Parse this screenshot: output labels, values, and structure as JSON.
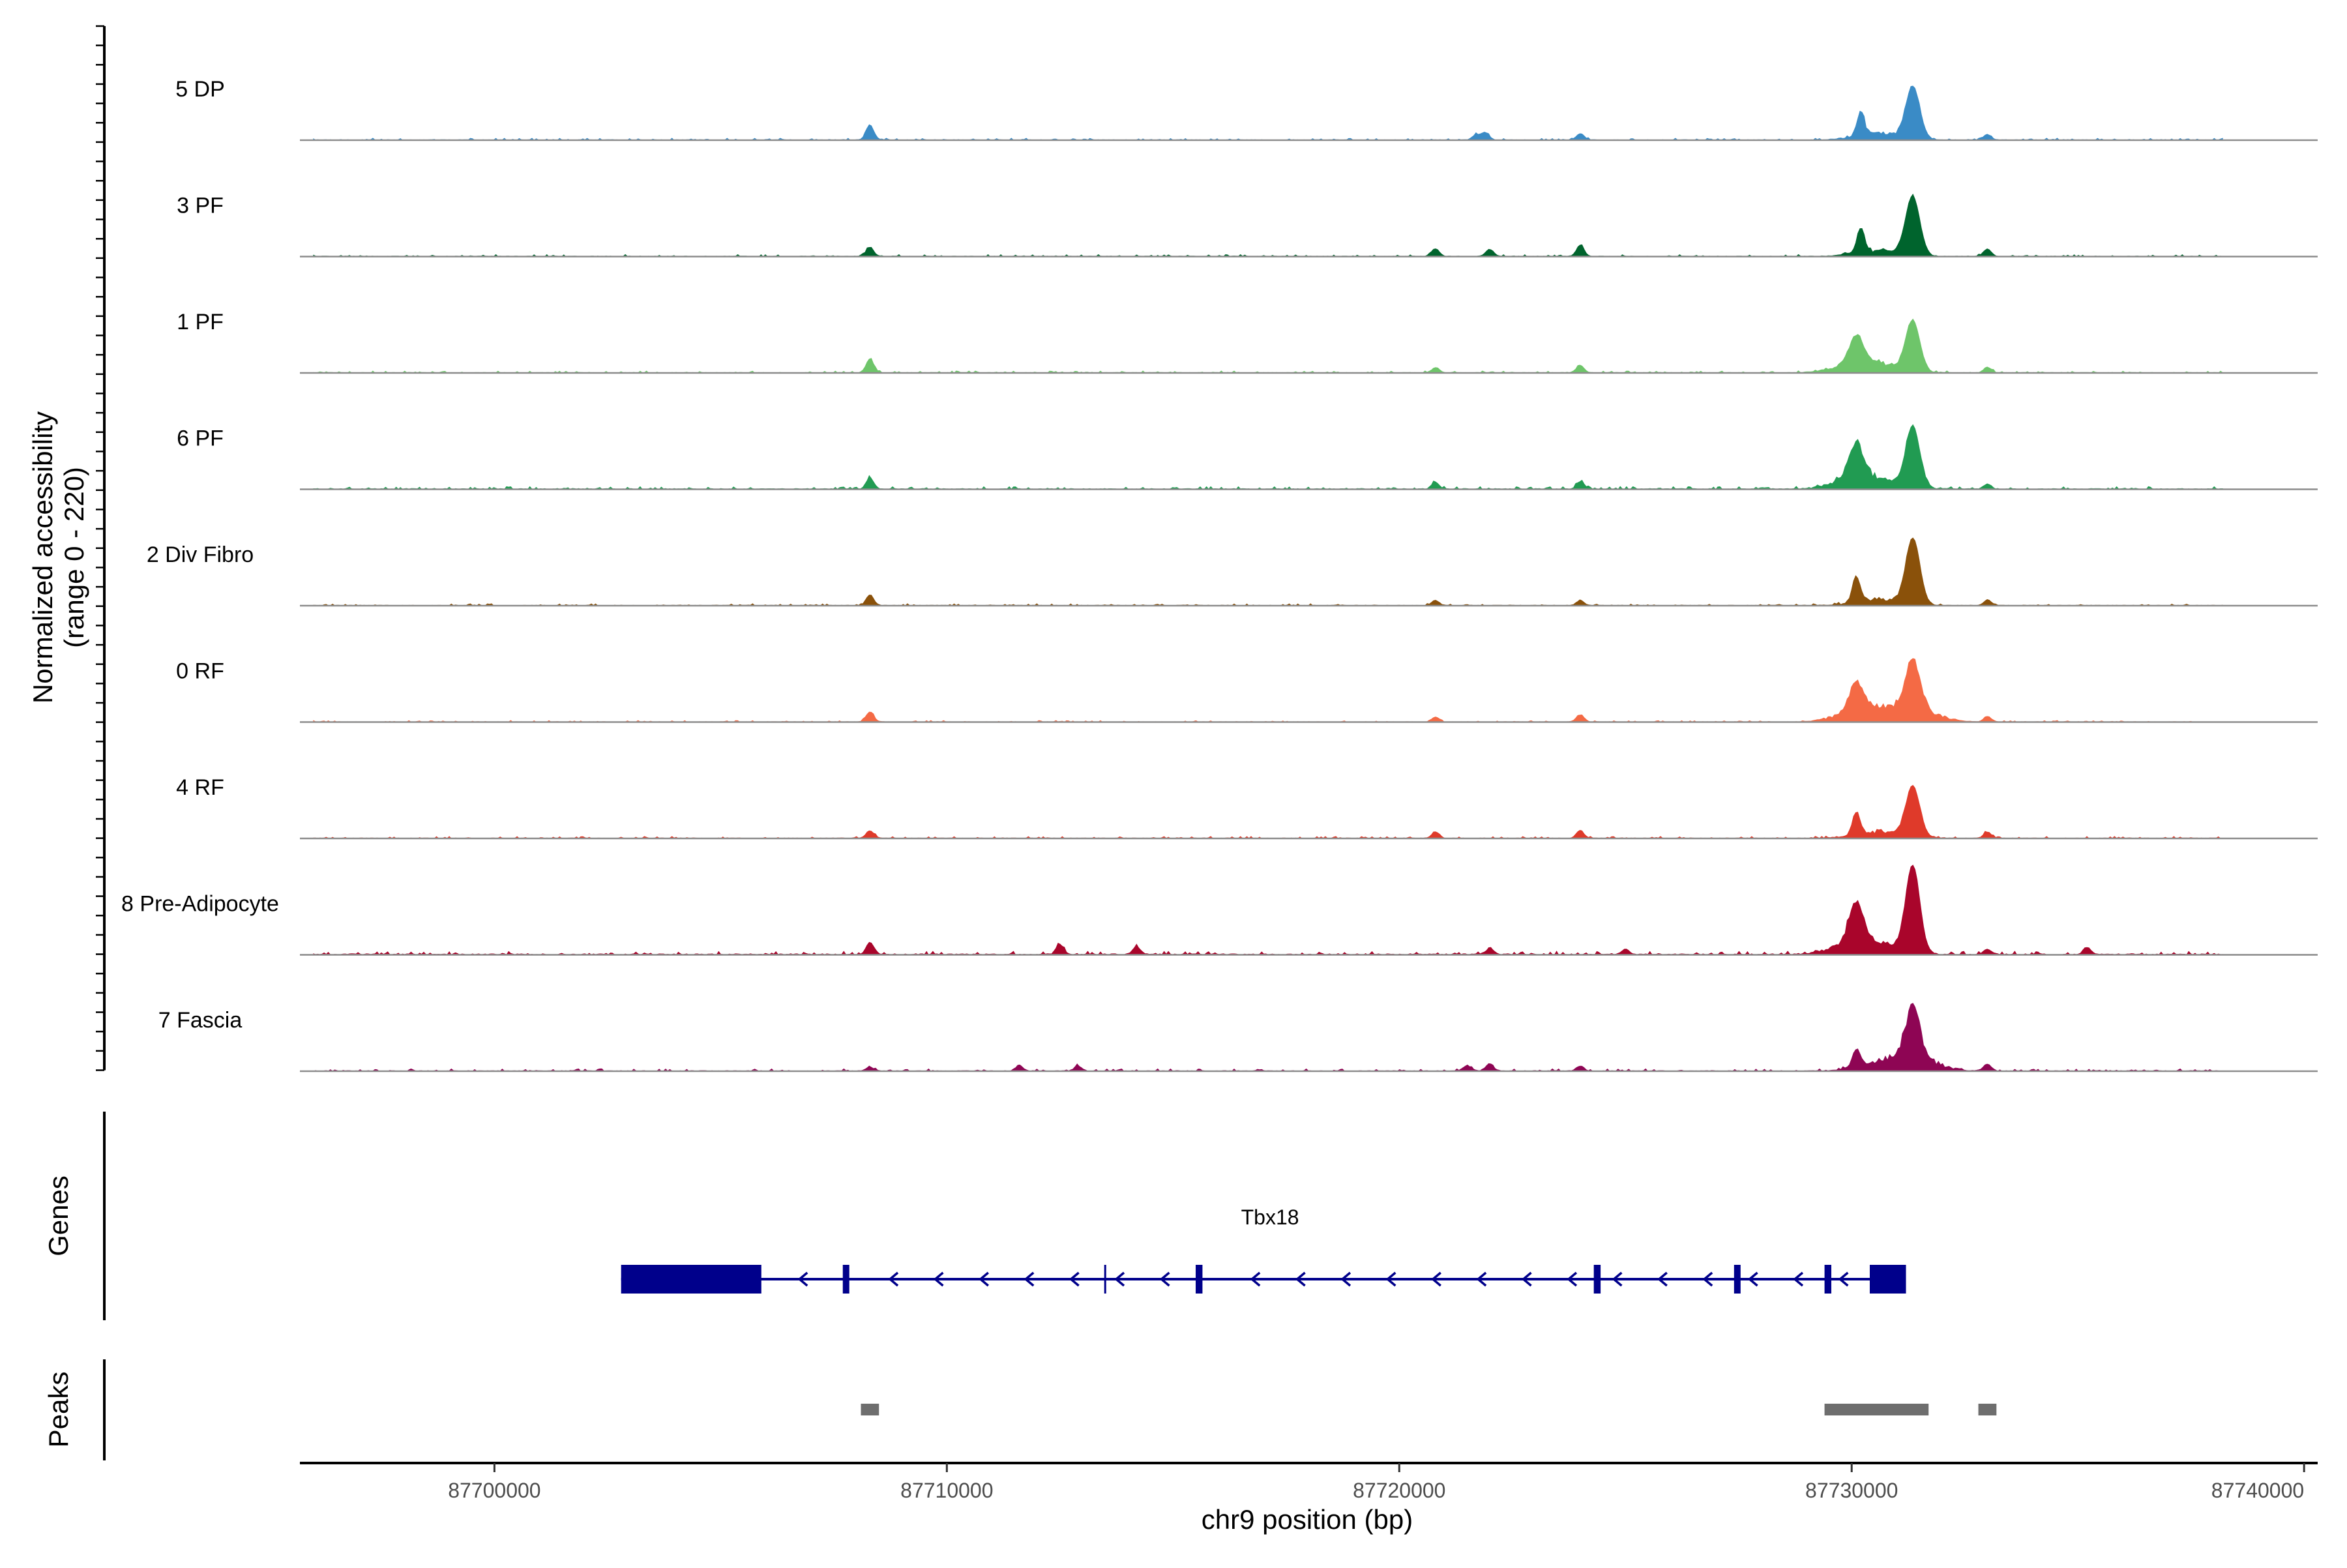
{
  "chart_data": {
    "type": "area",
    "title": "",
    "ylabel_line1": "Normalized accessibility",
    "ylabel_line2": "(range 0 - 220)",
    "ylim": [
      0,
      220
    ],
    "xlabel": "chr9 position (bp)",
    "xlim": [
      87695700,
      87740300
    ],
    "x_ticks": [
      87700000,
      87710000,
      87720000,
      87730000,
      87740000
    ],
    "x_tick_labels": [
      "87700000",
      "87710000",
      "87720000",
      "87730000",
      "87740000"
    ],
    "series": [
      {
        "name": "5 DP",
        "color": "#3a8bc6",
        "peaks": [
          [
            87708300,
            60
          ],
          [
            87721700,
            20
          ],
          [
            87721900,
            28
          ],
          [
            87724000,
            25
          ],
          [
            87730200,
            95
          ],
          [
            87731350,
            205
          ],
          [
            87733000,
            22
          ]
        ],
        "noise": 5
      },
      {
        "name": "3 PF",
        "color": "#00642d",
        "peaks": [
          [
            87708300,
            35
          ],
          [
            87720800,
            30
          ],
          [
            87722000,
            28
          ],
          [
            87724000,
            45
          ],
          [
            87730200,
            90
          ],
          [
            87731350,
            230
          ],
          [
            87733000,
            30
          ]
        ],
        "noise": 5
      },
      {
        "name": "1 PF",
        "color": "#6ec56a",
        "peaks": [
          [
            87708300,
            55
          ],
          [
            87720800,
            20
          ],
          [
            87724000,
            30
          ],
          [
            87730100,
            105
          ],
          [
            87731350,
            200
          ],
          [
            87733000,
            22
          ]
        ],
        "noise": 5
      },
      {
        "name": "6 PF",
        "color": "#219b52",
        "peaks": [
          [
            87708300,
            45
          ],
          [
            87720800,
            25
          ],
          [
            87724000,
            30
          ],
          [
            87730100,
            130
          ],
          [
            87731350,
            240
          ],
          [
            87733000,
            20
          ]
        ],
        "noise": 7
      },
      {
        "name": "2 Div Fibro",
        "color": "#8a510a",
        "peaks": [
          [
            87708300,
            42
          ],
          [
            87720800,
            20
          ],
          [
            87724000,
            20
          ],
          [
            87730100,
            100
          ],
          [
            87731350,
            260
          ],
          [
            87733000,
            22
          ]
        ],
        "noise": 5
      },
      {
        "name": "0 RF",
        "color": "#f46a45",
        "peaks": [
          [
            87708300,
            40
          ],
          [
            87720800,
            20
          ],
          [
            87724000,
            28
          ],
          [
            87730100,
            110
          ],
          [
            87731350,
            195
          ],
          [
            87733000,
            22
          ]
        ],
        "noise": 4
      },
      {
        "name": "4 RF",
        "color": "#df3a2a",
        "peaks": [
          [
            87708300,
            30
          ],
          [
            87720800,
            25
          ],
          [
            87724000,
            30
          ],
          [
            87730100,
            90
          ],
          [
            87731350,
            200
          ],
          [
            87733000,
            25
          ]
        ],
        "noise": 5
      },
      {
        "name": "8 Pre-Adipocyte",
        "color": "#a9052b",
        "peaks": [
          [
            87708300,
            50
          ],
          [
            87712500,
            40
          ],
          [
            87714200,
            30
          ],
          [
            87722000,
            22
          ],
          [
            87725000,
            20
          ],
          [
            87730100,
            150
          ],
          [
            87731350,
            345
          ],
          [
            87733000,
            22
          ],
          [
            87735200,
            28
          ]
        ],
        "noise": 9
      },
      {
        "name": "7 Fascia",
        "color": "#8e0554",
        "peaks": [
          [
            87708300,
            15
          ],
          [
            87711600,
            20
          ],
          [
            87712900,
            20
          ],
          [
            87721500,
            22
          ],
          [
            87722000,
            28
          ],
          [
            87724000,
            20
          ],
          [
            87730100,
            70
          ],
          [
            87731350,
            195
          ],
          [
            87733000,
            28
          ]
        ],
        "noise": 6
      }
    ],
    "genes": {
      "title": "Genes",
      "gene_name": "Tbx18",
      "color": "#00008b",
      "span": [
        87702800,
        87731200
      ],
      "strand": "-",
      "exons": [
        [
          87702800,
          87705900
        ],
        [
          87707700,
          87707800
        ],
        [
          87715500,
          87715650
        ],
        [
          87724300,
          87724450
        ],
        [
          87727400,
          87727450
        ],
        [
          87729400,
          87729550
        ],
        [
          87730400,
          87730450
        ],
        [
          87730500,
          87731200
        ]
      ],
      "ticks": [
        87713500
      ]
    },
    "peaks_track": {
      "title": "Peaks",
      "color": "#6e6e6e",
      "regions": [
        [
          87708100,
          87708500
        ],
        [
          87729400,
          87731700
        ],
        [
          87732800,
          87733200
        ]
      ]
    }
  }
}
